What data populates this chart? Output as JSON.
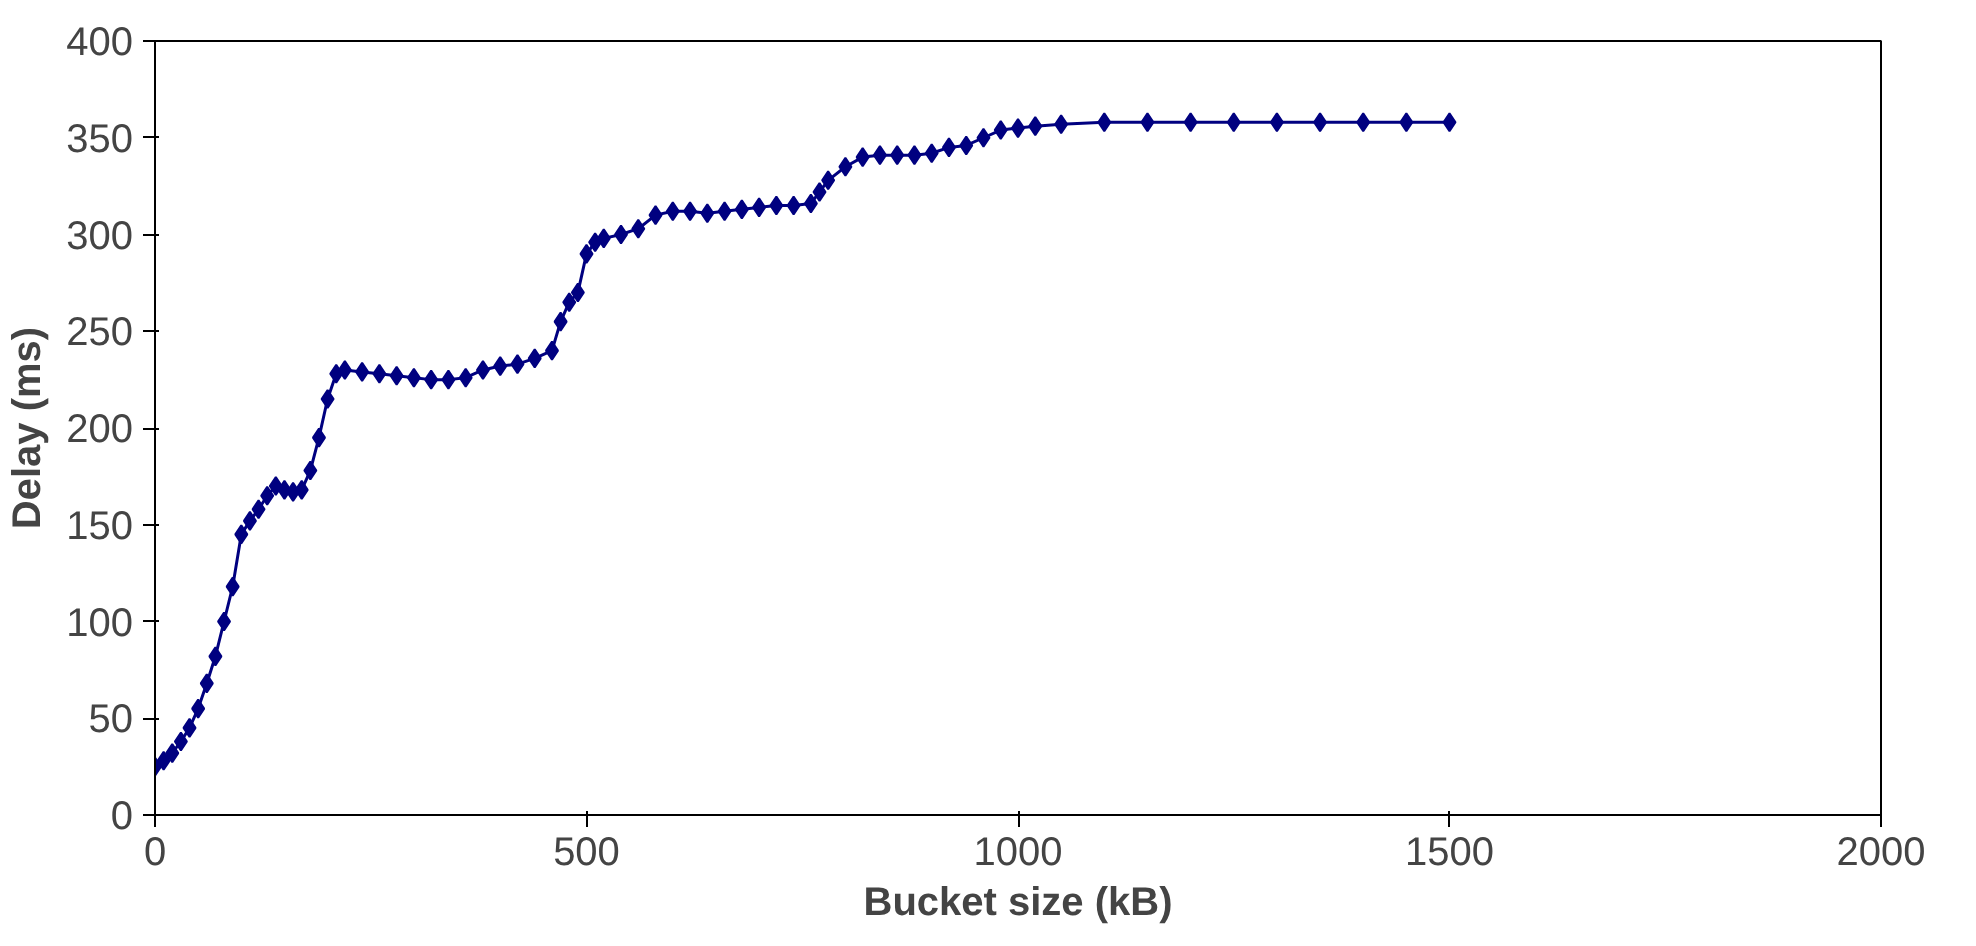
{
  "chart_data": {
    "type": "line",
    "xlabel": "Bucket size (kB)",
    "ylabel": "Delay (ms)",
    "xlim": [
      0,
      2000
    ],
    "ylim": [
      0,
      400
    ],
    "xticks": [
      0,
      500,
      1000,
      1500,
      2000
    ],
    "yticks": [
      0,
      50,
      100,
      150,
      200,
      250,
      300,
      350,
      400
    ],
    "grid": false,
    "marker": "diamond",
    "line_style": "solid",
    "series": [
      {
        "color": "#000080",
        "x": [
          0,
          10,
          20,
          30,
          40,
          50,
          60,
          70,
          80,
          90,
          100,
          110,
          120,
          130,
          140,
          150,
          160,
          170,
          180,
          190,
          200,
          210,
          220,
          240,
          260,
          280,
          300,
          320,
          340,
          360,
          380,
          400,
          420,
          440,
          460,
          470,
          480,
          490,
          500,
          510,
          520,
          540,
          560,
          580,
          600,
          620,
          640,
          660,
          680,
          700,
          720,
          740,
          760,
          770,
          780,
          800,
          820,
          840,
          860,
          880,
          900,
          920,
          940,
          960,
          980,
          1000,
          1020,
          1050,
          1100,
          1150,
          1200,
          1250,
          1300,
          1350,
          1400,
          1450,
          1500
        ],
        "values": [
          25,
          28,
          32,
          38,
          45,
          55,
          68,
          82,
          100,
          118,
          145,
          152,
          158,
          165,
          170,
          168,
          167,
          168,
          178,
          195,
          215,
          228,
          230,
          229,
          228,
          227,
          226,
          225,
          225,
          226,
          230,
          232,
          233,
          236,
          240,
          255,
          265,
          270,
          290,
          296,
          298,
          300,
          303,
          310,
          312,
          312,
          311,
          312,
          313,
          314,
          315,
          315,
          316,
          322,
          328,
          335,
          340,
          341,
          341,
          341,
          342,
          345,
          346,
          350,
          354,
          355,
          356,
          357,
          358,
          358,
          358,
          358,
          358,
          358,
          358,
          358,
          358
        ]
      }
    ]
  }
}
